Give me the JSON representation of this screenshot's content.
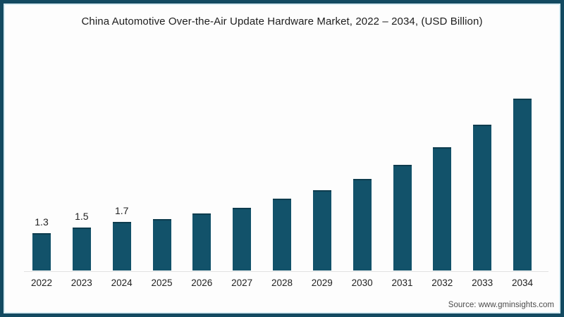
{
  "colors": {
    "background": "#fdfdfd",
    "bar": "#12526a",
    "bar_top_edge": "#0d3c4e",
    "frame": "#134a61",
    "frame_inner_line": "#d8ecf3",
    "axis_line": "#e2e2e2",
    "title_text": "#1d1d1d",
    "tick_text": "#222222",
    "source_text": "#4c4c4c"
  },
  "chart_data": {
    "type": "bar",
    "title": "China Automotive Over-the-Air Update Hardware Market, 2022 – 2034, (USD Billion)",
    "categories": [
      "2022",
      "2023",
      "2024",
      "2025",
      "2026",
      "2027",
      "2028",
      "2029",
      "2030",
      "2031",
      "2032",
      "2033",
      "2034"
    ],
    "values": [
      1.3,
      1.5,
      1.7,
      1.8,
      2.0,
      2.2,
      2.5,
      2.8,
      3.2,
      3.7,
      4.3,
      5.1,
      6.0
    ],
    "data_labels": [
      "1.3",
      "1.5",
      "1.7",
      null,
      null,
      null,
      null,
      null,
      null,
      null,
      null,
      null,
      null
    ],
    "xlabel": "",
    "ylabel": "",
    "unit": "USD Billion",
    "ylim": [
      0,
      6.5
    ],
    "grid": false,
    "legend": "none",
    "yaxis_shown": false,
    "source": "Source: www.gminsights.com"
  }
}
